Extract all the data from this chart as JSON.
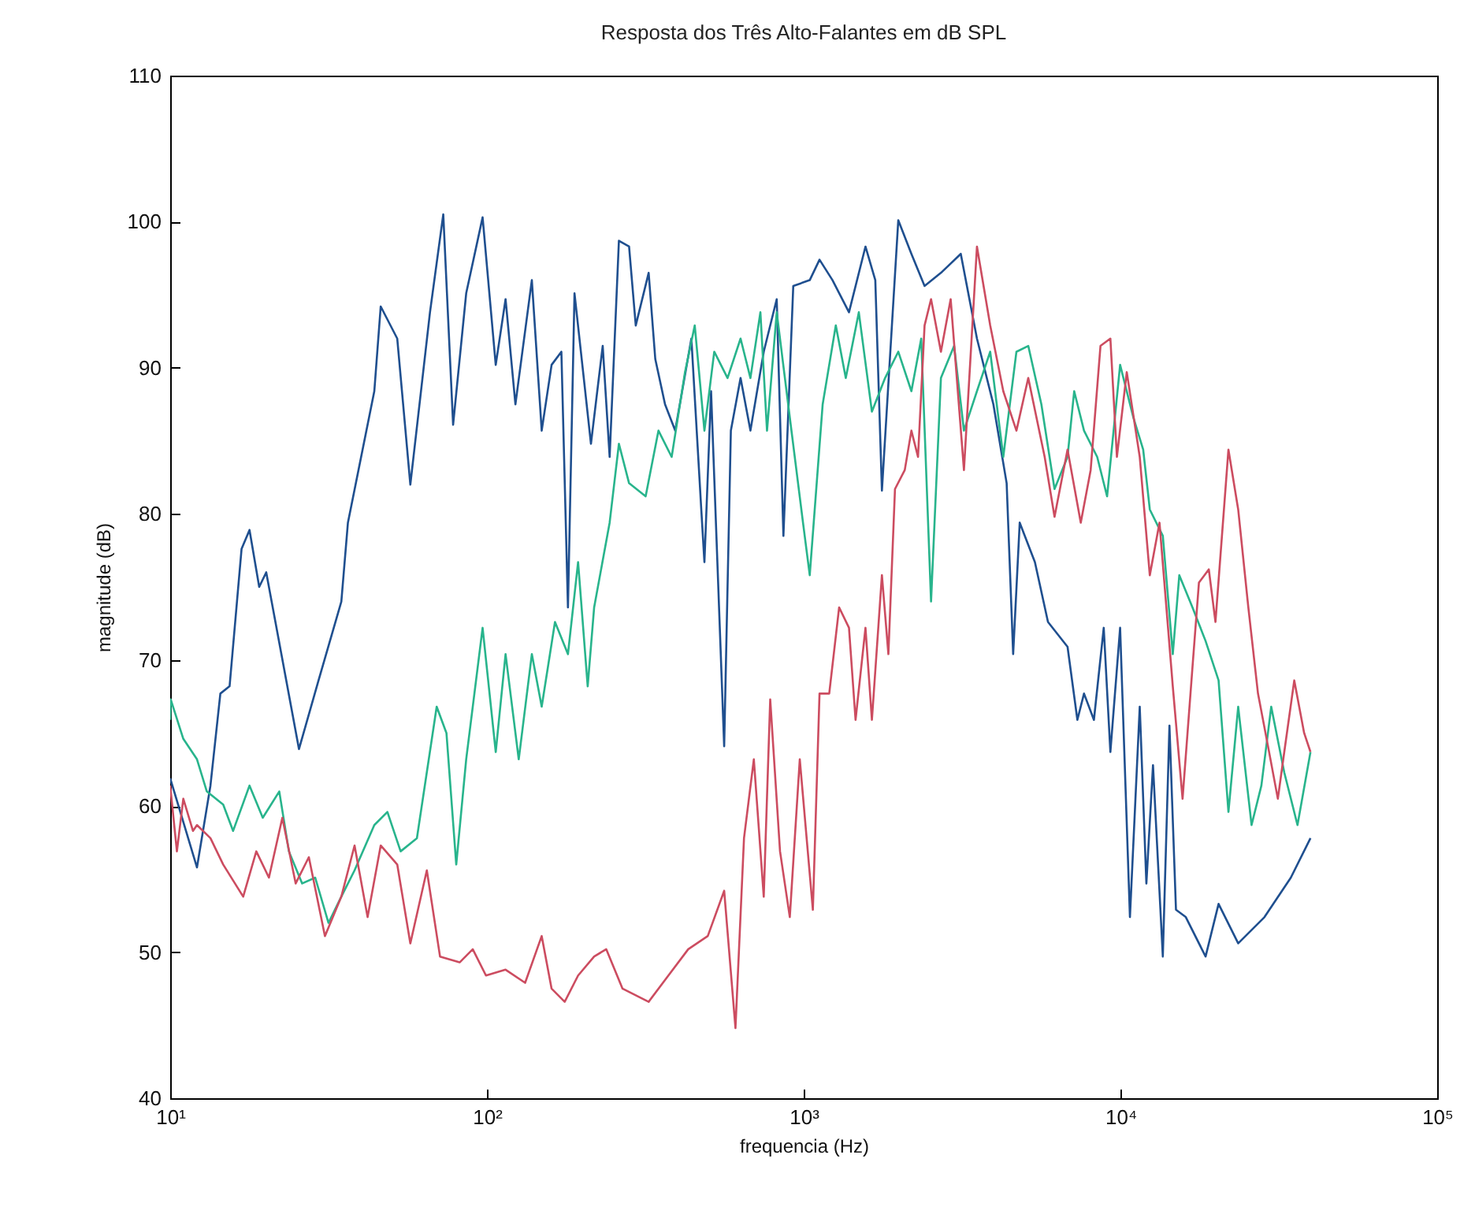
{
  "chart_data": {
    "type": "line",
    "title": "Resposta dos Três Alto-Falantes em dB SPL",
    "xlabel": "frequencia (Hz)",
    "ylabel": "magnitude (dB)",
    "log": "x",
    "grid": false,
    "xlim": [
      10,
      100000
    ],
    "ylim": [
      40,
      110
    ],
    "xticks": [
      {
        "value": 10,
        "label": "10¹"
      },
      {
        "value": 100,
        "label": "10²"
      },
      {
        "value": 1000,
        "label": "10³"
      },
      {
        "value": 10000,
        "label": "10⁴"
      },
      {
        "value": 100000,
        "label": "10⁵"
      }
    ],
    "yticks": [
      40,
      50,
      60,
      70,
      80,
      90,
      100,
      110
    ],
    "series": [
      {
        "color": "#1f4f8f",
        "x": [
          10,
          12.15,
          13.4,
          14.4,
          15.4,
          16.8,
          17.8,
          19.1,
          20.1,
          25.5,
          29.4,
          34.7,
          36.4,
          44.1,
          46.2,
          52.1,
          57.3,
          66.1,
          72.8,
          78.2,
          86,
          96.9,
          106.6,
          114.5,
          123,
          138.6,
          148.9,
          160,
          171.8,
          180.2,
          189,
          213,
          232,
          244,
          261,
          281,
          295,
          324,
          340,
          365,
          393,
          442,
          475,
          486,
          510,
          561,
          589,
          632,
          679,
          748,
          822,
          863,
          927,
          1045,
          1122,
          1233,
          1390,
          1567,
          1683,
          1766,
          1989,
          2188,
          2408,
          2712,
          3133,
          3524,
          3971,
          4373,
          4585,
          4809,
          5370,
          5906,
          6808,
          7313,
          7674,
          8247,
          8857,
          9295,
          9977,
          10715,
          11507,
          12075,
          12671,
          13609,
          14281,
          14974,
          16082,
          18571,
          20410,
          23539,
          28500,
          34514,
          39811
        ],
        "values": [
          61.9,
          55.8,
          61.4,
          67.7,
          68.2,
          77.6,
          78.9,
          75,
          76,
          63.9,
          68.6,
          74,
          79.4,
          88.4,
          94.2,
          92,
          82,
          93.8,
          100.5,
          86.1,
          95.1,
          100.3,
          90.2,
          94.7,
          87.5,
          96,
          85.7,
          90.2,
          91.1,
          73.6,
          95.1,
          84.8,
          91.5,
          83.9,
          98.7,
          98.3,
          92.9,
          96.5,
          90.6,
          87.5,
          85.7,
          92,
          80.3,
          76.7,
          88.4,
          64.1,
          85.7,
          89.3,
          85.7,
          91.1,
          94.7,
          78.5,
          95.6,
          96,
          97.4,
          96,
          93.8,
          98.3,
          96,
          81.6,
          100.1,
          97.8,
          95.6,
          96.5,
          97.8,
          92,
          87.5,
          82.1,
          70.4,
          79.4,
          76.7,
          72.6,
          70.9,
          65.9,
          67.7,
          65.9,
          72.2,
          63.7,
          72.2,
          52.4,
          66.8,
          54.7,
          62.8,
          49.7,
          65.5,
          52.9,
          52.4,
          49.7,
          53.3,
          50.6,
          52.4,
          55.1,
          57.8
        ]
      },
      {
        "color": "#28b48c",
        "x": [
          10,
          10.04,
          11,
          12.15,
          13.05,
          14.7,
          15.8,
          17.8,
          19.6,
          22.1,
          23.7,
          26.1,
          28.7,
          31.6,
          34.7,
          38.2,
          44.1,
          48.5,
          53.4,
          60.1,
          69.4,
          74.5,
          80,
          86,
          96.9,
          106.6,
          114.5,
          126,
          138.6,
          148.9,
          164,
          180.2,
          194,
          208,
          218,
          244,
          261,
          281,
          317,
          348,
          383,
          422,
          453,
          486,
          522,
          575,
          632,
          679,
          730,
          766,
          822,
          904,
          995,
          1045,
          1148,
          1263,
          1358,
          1493,
          1642,
          1807,
          1989,
          2188,
          2350,
          2524,
          2712,
          2985,
          3206,
          3524,
          3880,
          4267,
          4695,
          5117,
          5629,
          6194,
          6808,
          7145,
          7674,
          8446,
          9075,
          9977,
          10984,
          11798,
          12380,
          13609,
          14631,
          15342,
          16882,
          18571,
          20410,
          21928,
          23539,
          25942,
          27861,
          29923,
          32905,
          36224,
          39811
        ],
        "values": [
          65.9,
          67.3,
          64.6,
          63.2,
          61,
          60.1,
          58.3,
          61.4,
          59.2,
          61,
          56.9,
          54.7,
          55.1,
          52,
          53.8,
          55.6,
          58.7,
          59.6,
          56.9,
          57.8,
          66.8,
          65,
          56,
          63.2,
          72.2,
          63.7,
          70.4,
          63.2,
          70.4,
          66.8,
          72.6,
          70.4,
          76.7,
          68.2,
          73.6,
          79.4,
          84.8,
          82.1,
          81.2,
          85.7,
          83.9,
          89.7,
          92.9,
          85.7,
          91.1,
          89.3,
          92,
          89.3,
          93.8,
          85.7,
          93.8,
          86.6,
          79.4,
          75.8,
          87.5,
          92.9,
          89.3,
          93.8,
          87,
          89.3,
          91.1,
          88.4,
          92,
          74,
          89.3,
          91.5,
          85.7,
          88.4,
          91.1,
          83.9,
          91.1,
          91.5,
          87.5,
          81.7,
          83.9,
          88.4,
          85.7,
          83.9,
          81.2,
          90.2,
          86.6,
          84.4,
          80.3,
          78.5,
          70.4,
          75.8,
          73.6,
          71.3,
          68.6,
          59.6,
          66.8,
          58.7,
          61.4,
          66.8,
          62.3,
          58.7,
          63.7
        ]
      },
      {
        "color": "#cc4c60",
        "x": [
          10,
          10.5,
          11,
          11.8,
          12.15,
          13.4,
          14.7,
          17,
          18.7,
          20.5,
          22.6,
          24.9,
          27.4,
          30.8,
          34.7,
          38.2,
          42,
          46.2,
          52.1,
          57.3,
          64.6,
          71.1,
          82,
          90.2,
          99.3,
          114.5,
          132,
          148.9,
          160,
          176,
          194,
          218,
          238,
          268,
          324,
          374,
          432,
          498,
          561,
          609,
          648,
          696,
          748,
          784,
          842,
          904,
          972,
          1069,
          1122,
          1204,
          1294,
          1390,
          1458,
          1567,
          1642,
          1766,
          1851,
          1942,
          2085,
          2188,
          2296,
          2408,
          2524,
          2712,
          2911,
          3206,
          3524,
          3880,
          4267,
          4695,
          5117,
          5765,
          6194,
          6808,
          7495,
          8054,
          8650,
          9295,
          9748,
          10471,
          11507,
          12380,
          13284,
          14631,
          15709,
          16882,
          17696,
          19011,
          19953,
          21928,
          23539,
          25338,
          27183,
          29234,
          31405,
          32905,
          35384,
          38019,
          39811
        ],
        "values": [
          61.4,
          56.9,
          60.5,
          58.3,
          58.7,
          57.8,
          56,
          53.8,
          56.9,
          55.1,
          59.2,
          54.7,
          56.5,
          51.1,
          53.8,
          57.3,
          52.4,
          57.3,
          56,
          50.6,
          55.6,
          49.7,
          49.3,
          50.2,
          48.4,
          48.8,
          47.9,
          51.1,
          47.5,
          46.6,
          48.4,
          49.7,
          50.2,
          47.5,
          46.6,
          48.4,
          50.2,
          51.1,
          54.2,
          44.8,
          57.8,
          63.2,
          53.8,
          67.3,
          56.9,
          52.4,
          63.2,
          52.9,
          67.7,
          67.7,
          73.6,
          72.2,
          65.9,
          72.2,
          65.9,
          75.8,
          70.4,
          81.7,
          83,
          85.7,
          83.9,
          92.9,
          94.7,
          91.1,
          94.7,
          83,
          98.3,
          92.9,
          88.4,
          85.7,
          89.3,
          83.9,
          79.8,
          84.4,
          79.4,
          83,
          91.5,
          92,
          83.9,
          89.7,
          83.9,
          75.8,
          79.4,
          68.2,
          60.5,
          69.5,
          75.3,
          76.2,
          72.6,
          84.4,
          80.3,
          73.6,
          67.7,
          64.1,
          60.5,
          63.7,
          68.6,
          65,
          63.7
        ]
      }
    ]
  }
}
